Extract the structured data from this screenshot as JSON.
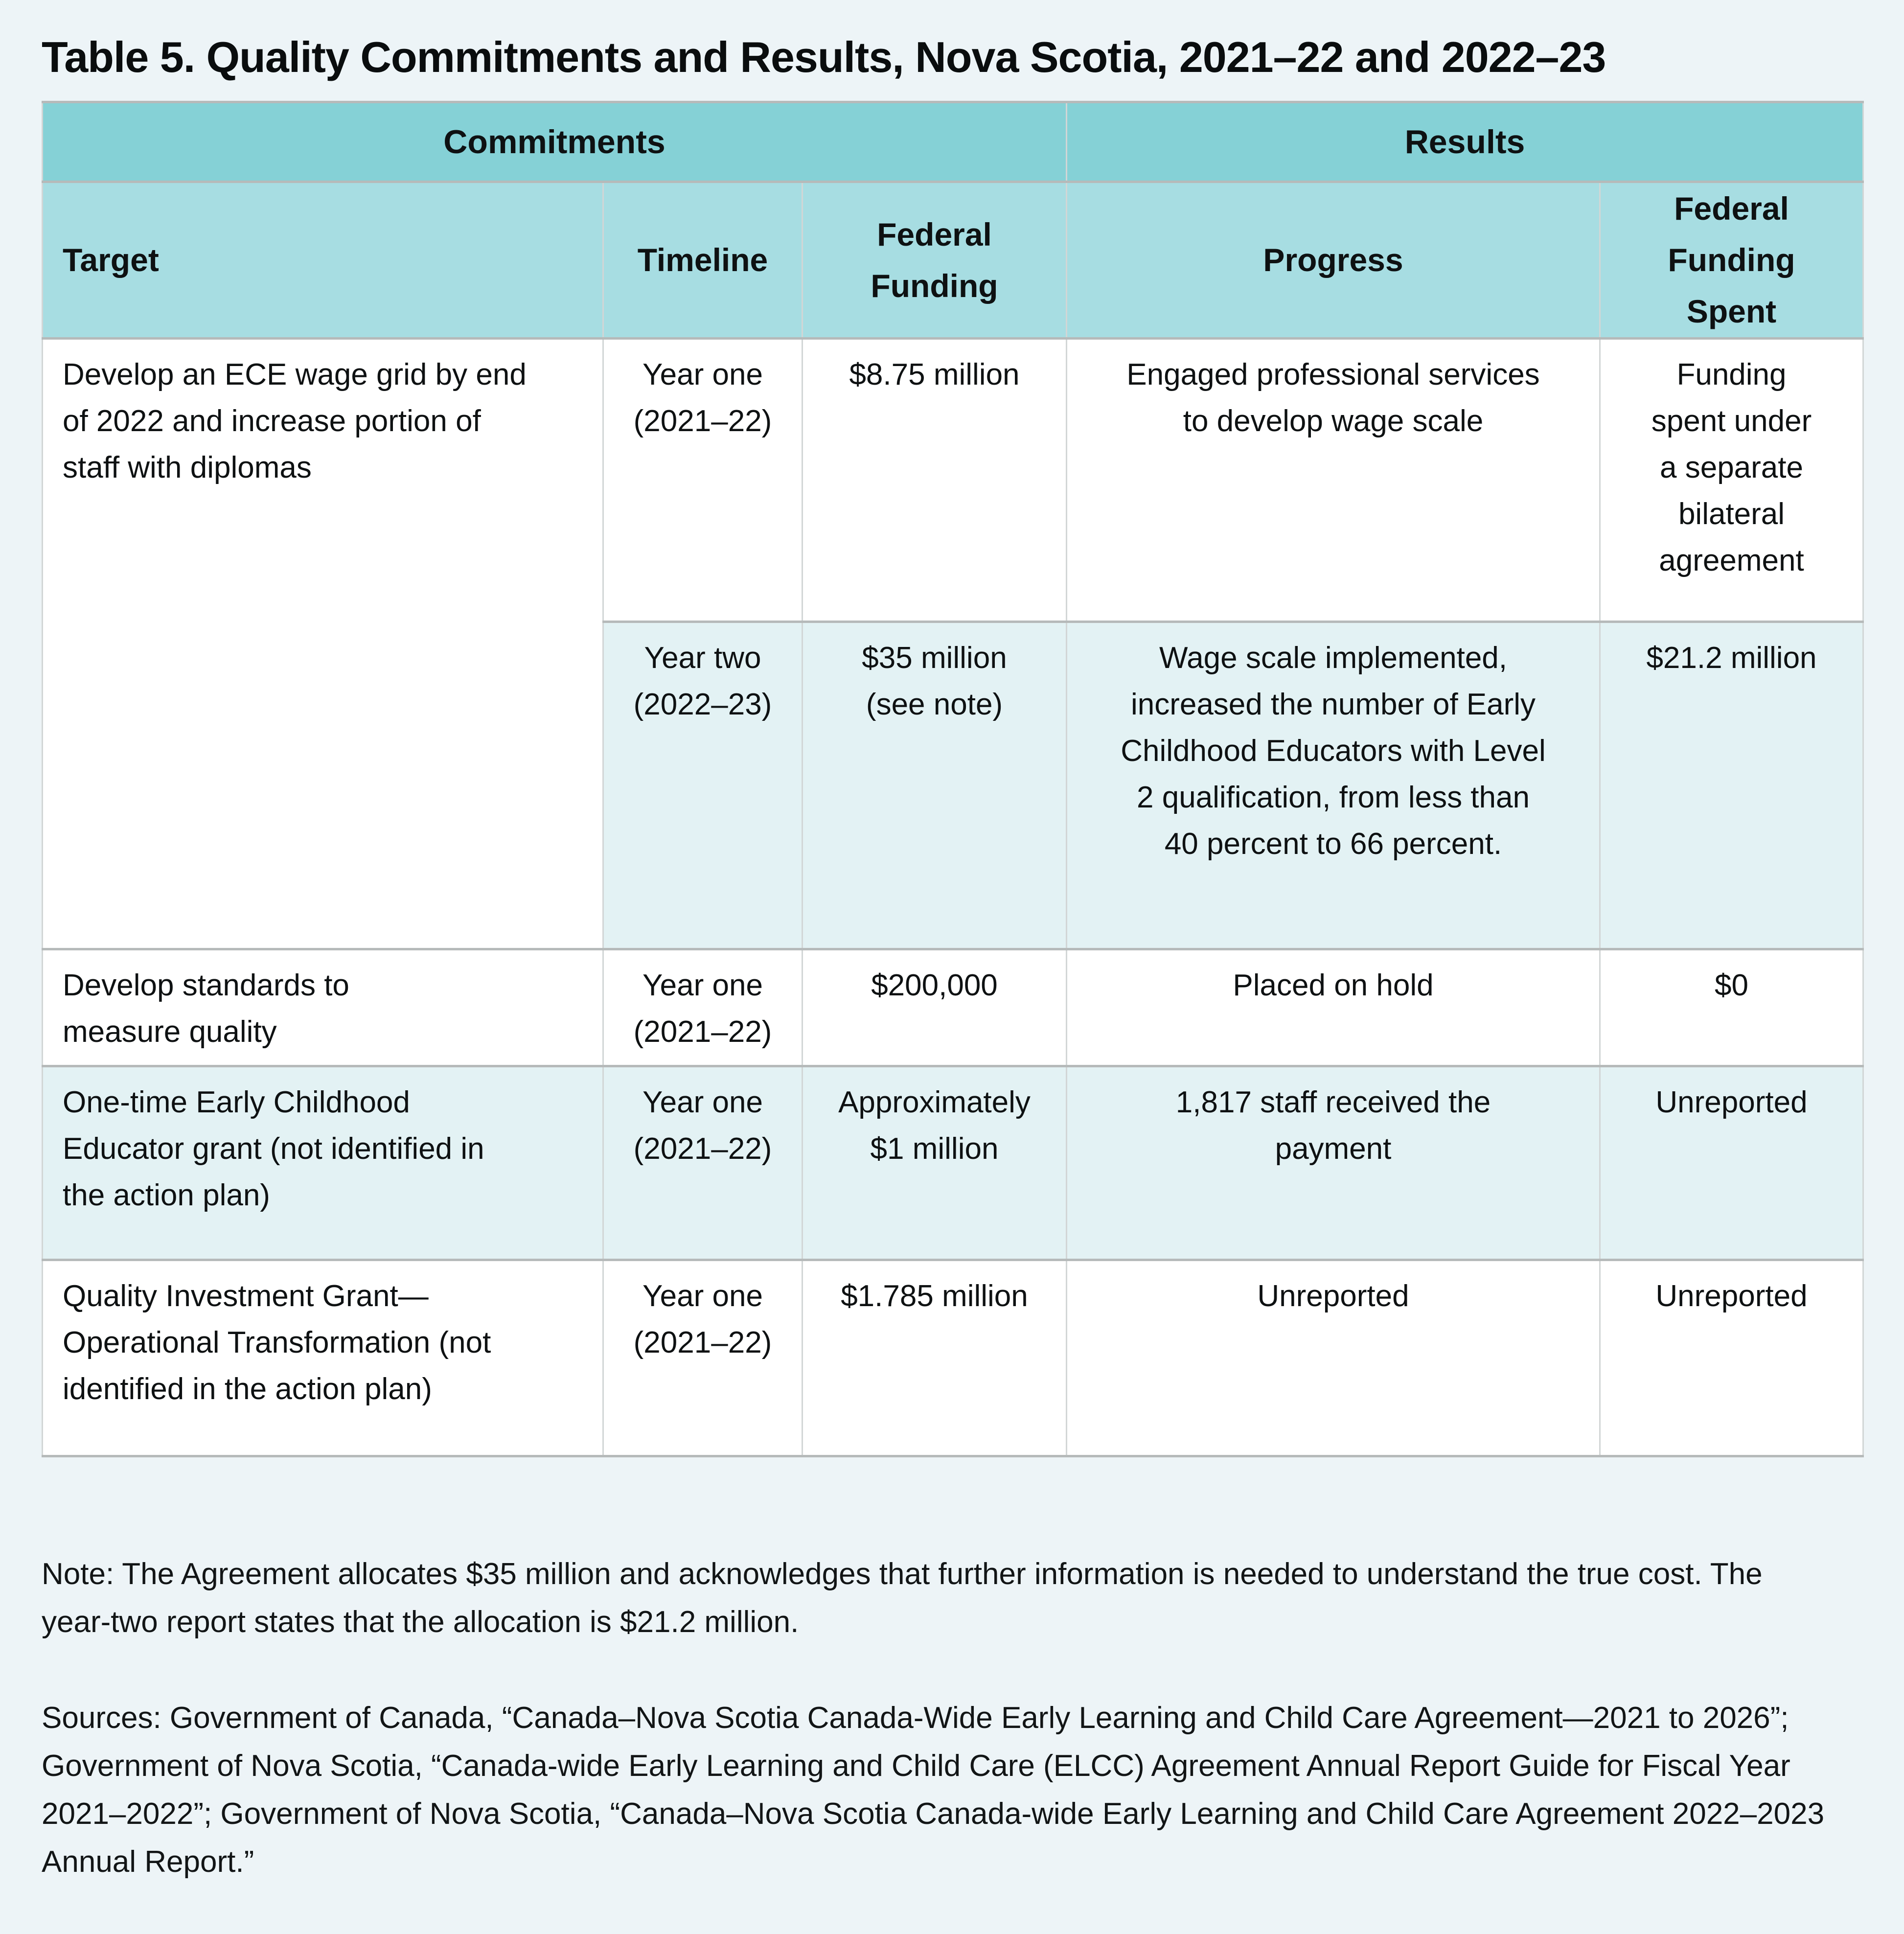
{
  "title": "Table 5. Quality Commitments and Results, Nova Scotia, 2021–22 and 2022–23",
  "table": {
    "group_headers": [
      {
        "label": "Commitments",
        "colspan": 3
      },
      {
        "label": "Results",
        "colspan": 2
      }
    ],
    "columns": [
      "Target",
      "Timeline",
      "Federal\nFunding",
      "Progress",
      "Federal\nFunding Spent"
    ],
    "rows": [
      {
        "target": "Develop an ECE wage grid by end\nof 2022 and increase portion of\nstaff with diplomas",
        "sub_rows": [
          {
            "timeline": "Year one\n(2021–22)",
            "federal_funding": "$8.75 million",
            "progress": "Engaged professional services\nto develop wage scale",
            "federal_funding_spent": "Funding\nspent under\na separate\nbilateral\nagreement"
          },
          {
            "timeline": "Year two\n(2022–23)",
            "federal_funding": "$35 million\n(see note)",
            "progress": "Wage scale implemented,\nincreased the number of Early\nChildhood Educators with Level\n2 qualification, from less than\n40 percent to 66 percent.",
            "federal_funding_spent": "$21.2 million"
          }
        ]
      },
      {
        "target": "Develop standards to\nmeasure quality",
        "timeline": "Year one\n(2021–22)",
        "federal_funding": "$200,000",
        "progress": "Placed on hold",
        "federal_funding_spent": "$0"
      },
      {
        "target": "One-time Early Childhood\nEducator grant (not identified in\nthe action plan)",
        "timeline": "Year one\n(2021–22)",
        "federal_funding": "Approximately\n$1 million",
        "progress": "1,817 staff received the\npayment",
        "federal_funding_spent": "Unreported"
      },
      {
        "target": "Quality Investment Grant—\nOperational Transformation (not\nidentified in the action plan)",
        "timeline": "Year one\n(2021–22)",
        "federal_funding": "$1.785 million",
        "progress": "Unreported",
        "federal_funding_spent": "Unreported"
      }
    ]
  },
  "note": "Note: The Agreement allocates $35 million and acknowledges that further information is needed to understand the true cost. The\nyear-two report states that the allocation is $21.2 million.",
  "sources": "Sources: Government of Canada, “Canada–Nova Scotia Canada-Wide Early Learning and Child Care Agreement—2021 to 2026”;\nGovernment of Nova Scotia, “Canada-wide Early Learning and Child Care (ELCC) Agreement Annual Report Guide for Fiscal Year\n2021–2022”; Government of Nova Scotia, “Canada–Nova Scotia Canada-wide Early Learning and Child Care Agreement 2022–2023\nAnnual Report.”",
  "colors": {
    "page_background": "#edf4f7",
    "group_header_background": "#85d1d6",
    "column_header_background": "#a7dde2",
    "tint_row_background": "#e3f2f4",
    "horizontal_rule": "#b6baba",
    "vertical_rule": "#d2d6d6"
  }
}
